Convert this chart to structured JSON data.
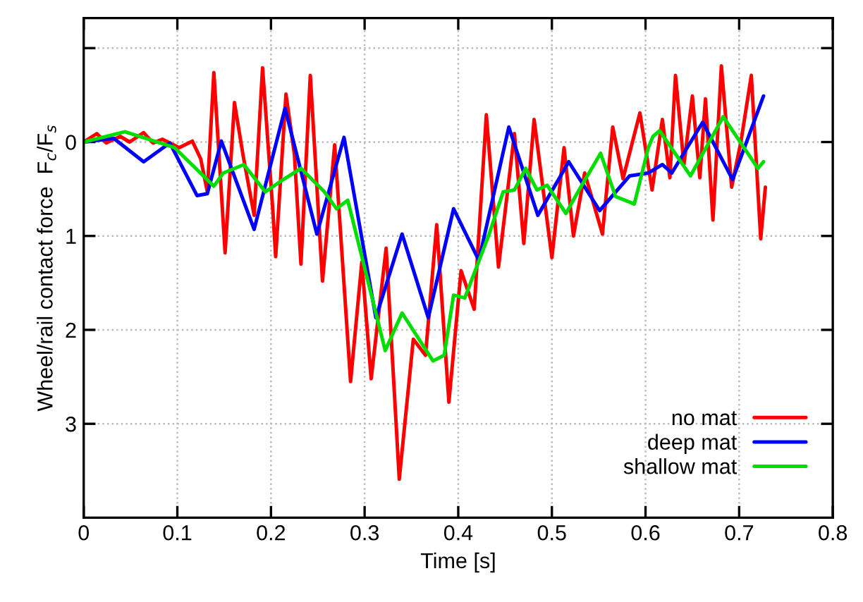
{
  "chart_data": {
    "type": "line",
    "xlabel": "Time [s]",
    "ylabel": "Wheel/rail contact force  F$_{c}$/F$_{s}$",
    "xlim": [
      0,
      0.8
    ],
    "xticks": [
      0,
      0.1,
      0.2,
      0.3,
      0.4,
      0.5,
      0.6,
      0.7,
      0.8
    ],
    "ylim": [
      4,
      -1.32
    ],
    "yticks": [
      {
        "value": -1,
        "label": null
      },
      0,
      1,
      2,
      3
    ],
    "grid": true,
    "legend": "bottom right",
    "line_style": "solid",
    "marker": "none",
    "series": [
      {
        "name": "no mat",
        "color": "#ff0000",
        "x": [
          0,
          0.014,
          0.024,
          0.039,
          0.049,
          0.064,
          0.074,
          0.084,
          0.102,
          0.116,
          0.125,
          0.132,
          0.139,
          0.151,
          0.161,
          0.17,
          0.182,
          0.191,
          0.202,
          0.205,
          0.216,
          0.225,
          0.232,
          0.242,
          0.255,
          0.268,
          0.285,
          0.297,
          0.307,
          0.323,
          0.337,
          0.352,
          0.365,
          0.377,
          0.39,
          0.403,
          0.417,
          0.43,
          0.443,
          0.46,
          0.47,
          0.481,
          0.5,
          0.513,
          0.523,
          0.535,
          0.554,
          0.565,
          0.576,
          0.594,
          0.607,
          0.618,
          0.626,
          0.632,
          0.641,
          0.65,
          0.658,
          0.664,
          0.672,
          0.681,
          0.692,
          0.702,
          0.713,
          0.723,
          0.728
        ],
        "values": [
          0,
          -0.09,
          0.01,
          -0.06,
          0,
          -0.1,
          0.01,
          -0.03,
          0.06,
          -0.01,
          0.18,
          0.53,
          -0.74,
          1.18,
          -0.42,
          0.13,
          0.78,
          -0.79,
          0.73,
          1.22,
          -0.51,
          0.13,
          1.3,
          -0.71,
          1.48,
          0.03,
          2.55,
          1.28,
          2.52,
          1.13,
          3.59,
          2.1,
          2.27,
          0.88,
          2.77,
          1.37,
          1.78,
          -0.29,
          1.33,
          -0.09,
          1.08,
          -0.24,
          1.23,
          0.06,
          1.0,
          0.33,
          0.98,
          -0.16,
          0.39,
          -0.31,
          0.51,
          -0.24,
          0.38,
          -0.71,
          0.24,
          -0.49,
          0.38,
          -0.46,
          0.83,
          -0.81,
          0.48,
          -0.01,
          -0.71,
          1.03,
          0.48
        ]
      },
      {
        "name": "deep mat",
        "color": "#0000ff",
        "x": [
          0,
          0.032,
          0.064,
          0.092,
          0.121,
          0.132,
          0.147,
          0.182,
          0.215,
          0.249,
          0.278,
          0.312,
          0.34,
          0.368,
          0.395,
          0.422,
          0.454,
          0.485,
          0.518,
          0.551,
          0.583,
          0.603,
          0.618,
          0.628,
          0.661,
          0.693,
          0.726
        ],
        "values": [
          0,
          -0.04,
          0.21,
          0.01,
          0.57,
          0.55,
          -0.01,
          0.93,
          -0.36,
          0.98,
          -0.05,
          1.87,
          0.98,
          1.87,
          0.71,
          1.26,
          -0.16,
          0.78,
          0.21,
          0.73,
          0.36,
          0.33,
          0.24,
          0.33,
          -0.21,
          0.4,
          -0.49
        ]
      },
      {
        "name": "shallow mat",
        "color": "#00dd00",
        "x": [
          0,
          0.044,
          0.097,
          0.139,
          0.149,
          0.171,
          0.194,
          0.21,
          0.232,
          0.257,
          0.27,
          0.282,
          0.322,
          0.34,
          0.373,
          0.385,
          0.395,
          0.407,
          0.433,
          0.448,
          0.46,
          0.472,
          0.484,
          0.495,
          0.515,
          0.529,
          0.552,
          0.568,
          0.588,
          0.603,
          0.608,
          0.615,
          0.648,
          0.683,
          0.72,
          0.726
        ],
        "values": [
          0,
          -0.11,
          0.06,
          0.47,
          0.33,
          0.24,
          0.53,
          0.42,
          0.28,
          0.53,
          0.71,
          0.62,
          2.22,
          1.82,
          2.33,
          2.27,
          1.63,
          1.66,
          0.98,
          0.53,
          0.51,
          0.28,
          0.51,
          0.46,
          0.76,
          0.51,
          0.12,
          0.58,
          0.66,
          0.06,
          -0.06,
          -0.12,
          0.36,
          -0.27,
          0.28,
          0.21
        ]
      }
    ]
  }
}
